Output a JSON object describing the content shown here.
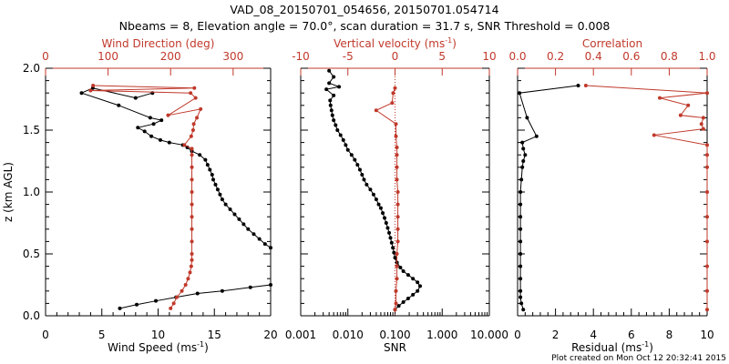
{
  "header": {
    "title_line1": "VAD_08_20150701_054656, 20150701.054714",
    "title_line2": "Nbeams = 8, Elevation angle = 70.0°, scan duration = 31.7 s, SNR Threshold = 0.008"
  },
  "footer": {
    "created": "Plot created on Mon Oct 12 20:32:41 2015"
  },
  "colors": {
    "primary": "#000000",
    "accent": "#c0392b"
  },
  "chart_data": [
    {
      "type": "scatter",
      "panel": "wind",
      "ylabel": "z (km AGL)",
      "ylim": [
        0,
        2
      ],
      "yticks": [
        "0.0",
        "0.5",
        "1.0",
        "1.5",
        "2.0"
      ],
      "bottom_axis": {
        "label": "Wind Speed (ms",
        "unit_sup": "-1",
        "unit_end": ")",
        "lim": [
          0,
          20
        ],
        "ticks": [
          "0",
          "5",
          "10",
          "15",
          "20"
        ]
      },
      "top_axis": {
        "label": "Wind Direction (deg)",
        "lim": [
          0,
          360
        ],
        "ticks": [
          "0",
          "100",
          "200",
          "300"
        ],
        "tick_values": [
          0,
          100,
          200,
          300
        ]
      },
      "series": [
        {
          "axis": "bottom",
          "values": [
            [
              6.6,
              0.06
            ],
            [
              8.1,
              0.09
            ],
            [
              9.8,
              0.12
            ],
            [
              11.6,
              0.15
            ],
            [
              13.5,
              0.18
            ],
            [
              15.7,
              0.2
            ],
            [
              18.2,
              0.23
            ],
            [
              20,
              0.25
            ],
            [
              20,
              0.55
            ],
            [
              19.5,
              0.58
            ],
            [
              19,
              0.62
            ],
            [
              18.5,
              0.66
            ],
            [
              18,
              0.7
            ],
            [
              17.6,
              0.74
            ],
            [
              17.2,
              0.78
            ],
            [
              16.8,
              0.82
            ],
            [
              16.4,
              0.86
            ],
            [
              16.0,
              0.9
            ],
            [
              15.7,
              0.94
            ],
            [
              15.5,
              0.98
            ],
            [
              15.3,
              1.02
            ],
            [
              15.1,
              1.06
            ],
            [
              14.9,
              1.1
            ],
            [
              14.8,
              1.14
            ],
            [
              14.6,
              1.18
            ],
            [
              14.4,
              1.22
            ],
            [
              14.2,
              1.26
            ],
            [
              13.7,
              1.3
            ],
            [
              13.0,
              1.33
            ],
            [
              12.6,
              1.36
            ],
            [
              12.2,
              1.38
            ],
            [
              11.0,
              1.4
            ],
            [
              10.2,
              1.42
            ],
            [
              9.4,
              1.45
            ],
            [
              8.8,
              1.49
            ],
            [
              8.2,
              1.52
            ],
            [
              9.6,
              1.55
            ],
            [
              10.3,
              1.58
            ],
            [
              9.3,
              1.6
            ],
            [
              6.5,
              1.7
            ],
            [
              3.2,
              1.8
            ],
            [
              4.2,
              1.84
            ],
            [
              8.0,
              1.76
            ],
            [
              9.5,
              1.8
            ]
          ]
        },
        {
          "axis": "top",
          "values": [
            [
              200,
              0.06
            ],
            [
              205,
              0.1
            ],
            [
              210,
              0.15
            ],
            [
              218,
              0.2
            ],
            [
              224,
              0.25
            ],
            [
              228,
              0.3
            ],
            [
              231,
              0.35
            ],
            [
              233,
              0.4
            ],
            [
              234,
              0.45
            ],
            [
              234,
              0.5
            ],
            [
              234,
              0.6
            ],
            [
              234,
              0.7
            ],
            [
              234,
              0.8
            ],
            [
              234,
              0.9
            ],
            [
              234,
              1.0
            ],
            [
              234,
              1.1
            ],
            [
              234,
              1.2
            ],
            [
              234,
              1.3
            ],
            [
              234,
              1.35
            ],
            [
              222,
              1.38
            ],
            [
              233,
              1.45
            ],
            [
              236,
              1.5
            ],
            [
              237,
              1.55
            ],
            [
              242,
              1.6
            ],
            [
              248,
              1.67
            ],
            [
              196,
              1.62
            ],
            [
              240,
              1.76
            ],
            [
              232,
              1.8
            ],
            [
              72,
              1.82
            ],
            [
              238,
              1.84
            ],
            [
              76,
              1.86
            ]
          ]
        }
      ]
    },
    {
      "type": "line",
      "panel": "snr",
      "ylim": [
        0,
        2
      ],
      "bottom_axis": {
        "label": "SNR",
        "scale": "log",
        "lim": [
          0.001,
          10
        ],
        "ticks": [
          "0.001",
          "0.010",
          "0.100",
          "1.000",
          "10.000"
        ]
      },
      "top_axis": {
        "label": "Vertical velocity (ms",
        "unit_sup": "-1",
        "unit_end": ")",
        "lim": [
          -10,
          10
        ],
        "ticks": [
          "-10",
          "-5",
          "0",
          "5",
          "10"
        ],
        "tick_values": [
          -10,
          -5,
          0,
          5,
          10
        ]
      },
      "series": [
        {
          "axis": "bottom",
          "values": [
            [
              0.1,
              0.05
            ],
            [
              0.12,
              0.08
            ],
            [
              0.15,
              0.11
            ],
            [
              0.19,
              0.14
            ],
            [
              0.24,
              0.17
            ],
            [
              0.3,
              0.2
            ],
            [
              0.34,
              0.24
            ],
            [
              0.3,
              0.27
            ],
            [
              0.24,
              0.3
            ],
            [
              0.19,
              0.33
            ],
            [
              0.15,
              0.36
            ],
            [
              0.13,
              0.39
            ],
            [
              0.11,
              0.43
            ],
            [
              0.1,
              0.47
            ],
            [
              0.095,
              0.51
            ],
            [
              0.09,
              0.55
            ],
            [
              0.085,
              0.59
            ],
            [
              0.08,
              0.63
            ],
            [
              0.075,
              0.67
            ],
            [
              0.07,
              0.71
            ],
            [
              0.065,
              0.75
            ],
            [
              0.06,
              0.79
            ],
            [
              0.055,
              0.83
            ],
            [
              0.05,
              0.87
            ],
            [
              0.045,
              0.9
            ],
            [
              0.04,
              0.94
            ],
            [
              0.035,
              0.98
            ],
            [
              0.03,
              1.02
            ],
            [
              0.025,
              1.06
            ],
            [
              0.022,
              1.1
            ],
            [
              0.02,
              1.14
            ],
            [
              0.018,
              1.18
            ],
            [
              0.016,
              1.22
            ],
            [
              0.014,
              1.26
            ],
            [
              0.012,
              1.3
            ],
            [
              0.01,
              1.34
            ],
            [
              0.009,
              1.38
            ],
            [
              0.008,
              1.42
            ],
            [
              0.007,
              1.46
            ],
            [
              0.006,
              1.5
            ],
            [
              0.0055,
              1.54
            ],
            [
              0.005,
              1.58
            ],
            [
              0.0047,
              1.62
            ],
            [
              0.0045,
              1.66
            ],
            [
              0.0043,
              1.7
            ],
            [
              0.0042,
              1.74
            ],
            [
              0.005,
              1.78
            ],
            [
              0.0035,
              1.83
            ],
            [
              0.0065,
              1.85
            ],
            [
              0.004,
              1.88
            ],
            [
              0.005,
              1.93
            ],
            [
              0.004,
              1.98
            ]
          ]
        },
        {
          "axis": "top",
          "values": [
            [
              0,
              0.05
            ],
            [
              0.1,
              0.1
            ],
            [
              0.1,
              0.2
            ],
            [
              0.2,
              0.3
            ],
            [
              0.2,
              0.4
            ],
            [
              0.2,
              0.5
            ],
            [
              0.3,
              0.6
            ],
            [
              0.3,
              0.7
            ],
            [
              0.3,
              0.8
            ],
            [
              0.3,
              0.9
            ],
            [
              0.3,
              1.0
            ],
            [
              0.2,
              1.1
            ],
            [
              0.2,
              1.2
            ],
            [
              0.2,
              1.3
            ],
            [
              0.2,
              1.36
            ],
            [
              0.1,
              1.45
            ],
            [
              0.1,
              1.55
            ],
            [
              -2.0,
              1.66
            ],
            [
              -0.3,
              1.72
            ],
            [
              -0.2,
              1.8
            ],
            [
              0,
              1.84
            ]
          ]
        }
      ]
    },
    {
      "type": "scatter",
      "panel": "correlation",
      "ylim": [
        0,
        2
      ],
      "bottom_axis": {
        "label": "Residual (ms",
        "unit_sup": "-1",
        "unit_end": ")",
        "lim": [
          0,
          10
        ],
        "ticks": [
          "0",
          "2",
          "4",
          "6",
          "8",
          "10"
        ]
      },
      "top_axis": {
        "label": "Correlation",
        "lim": [
          0,
          1
        ],
        "ticks": [
          "0.0",
          "0.2",
          "0.4",
          "0.6",
          "0.8",
          "1.0"
        ],
        "tick_values": [
          0,
          0.2,
          0.4,
          0.6,
          0.8,
          1.0
        ]
      },
      "series": [
        {
          "axis": "bottom",
          "values": [
            [
              0.3,
              0.05
            ],
            [
              0.2,
              0.1
            ],
            [
              0.15,
              0.15
            ],
            [
              0.15,
              0.2
            ],
            [
              0.15,
              0.3
            ],
            [
              0.15,
              0.4
            ],
            [
              0.15,
              0.5
            ],
            [
              0.15,
              0.6
            ],
            [
              0.15,
              0.7
            ],
            [
              0.15,
              0.8
            ],
            [
              0.15,
              0.9
            ],
            [
              0.15,
              1.0
            ],
            [
              0.2,
              1.1
            ],
            [
              0.25,
              1.2
            ],
            [
              0.3,
              1.25
            ],
            [
              0.4,
              1.3
            ],
            [
              0.3,
              1.35
            ],
            [
              0.25,
              1.4
            ],
            [
              1.0,
              1.45
            ],
            [
              0.5,
              1.6
            ],
            [
              0.1,
              1.8
            ],
            [
              3.2,
              1.86
            ]
          ]
        },
        {
          "axis": "top",
          "values": [
            [
              1.0,
              0.05
            ],
            [
              1.0,
              0.2
            ],
            [
              1.0,
              0.4
            ],
            [
              1.0,
              0.6
            ],
            [
              1.0,
              0.8
            ],
            [
              1.0,
              1.0
            ],
            [
              1.0,
              1.2
            ],
            [
              1.0,
              1.3
            ],
            [
              1.0,
              1.38
            ],
            [
              0.72,
              1.46
            ],
            [
              0.98,
              1.51
            ],
            [
              0.97,
              1.55
            ],
            [
              0.98,
              1.6
            ],
            [
              0.86,
              1.62
            ],
            [
              0.9,
              1.7
            ],
            [
              0.75,
              1.76
            ],
            [
              1.0,
              1.8
            ],
            [
              0.36,
              1.86
            ]
          ]
        }
      ]
    }
  ]
}
